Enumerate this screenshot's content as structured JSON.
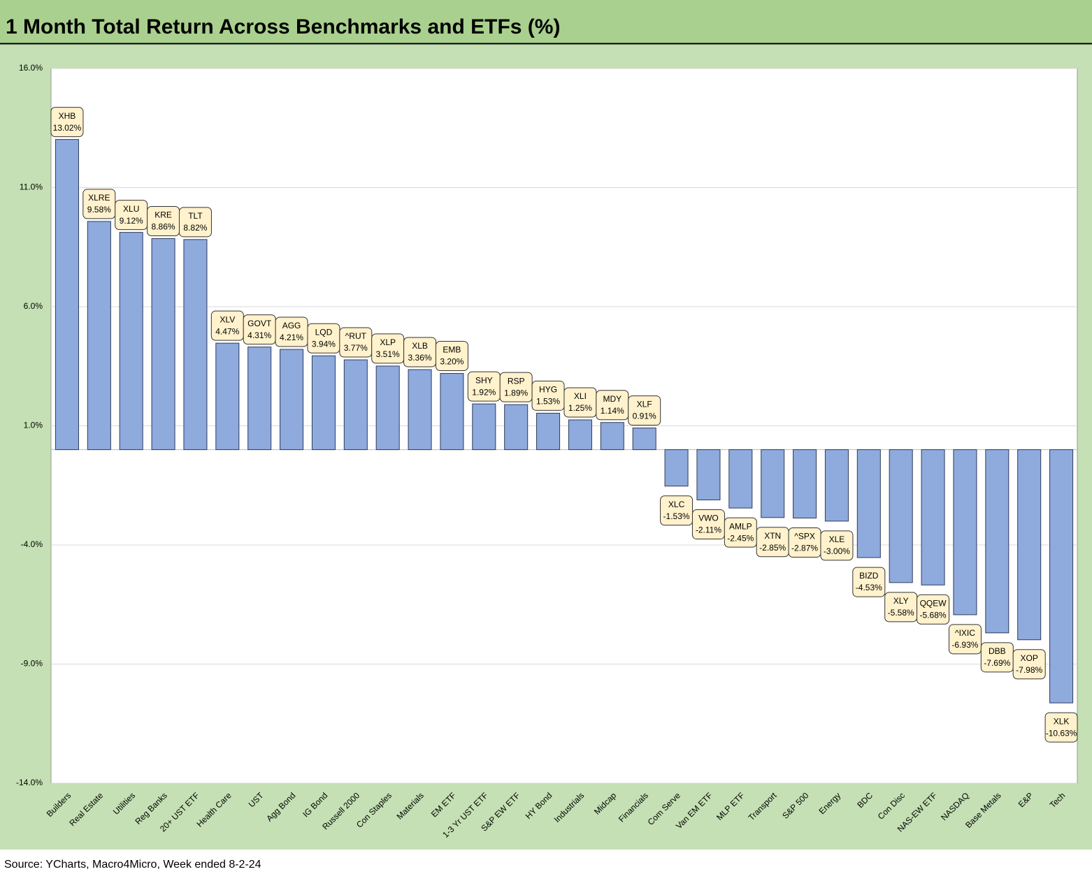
{
  "chart_data": {
    "type": "bar",
    "title": "1 Month Total Return Across Benchmarks and ETFs (%)",
    "source": "Source: YCharts, Macro4Micro, Week ended 8-2-24",
    "categories": [
      "Builders",
      "Real Estate",
      "Utilities",
      "Reg Banks",
      "20+ UST ETF",
      "Health Care",
      "UST",
      "Agg Bond",
      "IG Bond",
      "Russell 2000",
      "Con Staples",
      "Materials",
      "EM ETF",
      "1-3 Yr UST ETF",
      "S&P EW ETF",
      "HY Bond",
      "Industrials",
      "Midcap",
      "Financials",
      "Com Serve",
      "Van EM ETF",
      "MLP ETF",
      "Transport",
      "S&P 500",
      "Energy",
      "BDC",
      "Con Disc",
      "NAS-EW ETF",
      "NASDAQ",
      "Base Metals",
      "E&P",
      "Tech"
    ],
    "tickers": [
      "XHB",
      "XLRE",
      "XLU",
      "KRE",
      "TLT",
      "XLV",
      "GOVT",
      "AGG",
      "LQD",
      "^RUT",
      "XLP",
      "XLB",
      "EMB",
      "SHY",
      "RSP",
      "HYG",
      "XLI",
      "MDY",
      "XLF",
      "XLC",
      "VWO",
      "AMLP",
      "XTN",
      "^SPX",
      "XLE",
      "BIZD",
      "XLY",
      "QQEW",
      "^IXIC",
      "DBB",
      "XOP",
      "XLK"
    ],
    "values": [
      13.02,
      9.58,
      9.12,
      8.86,
      8.82,
      4.47,
      4.31,
      4.21,
      3.94,
      3.77,
      3.51,
      3.36,
      3.2,
      1.92,
      1.89,
      1.53,
      1.25,
      1.14,
      0.91,
      -1.53,
      -2.11,
      -2.45,
      -2.85,
      -2.87,
      -3.0,
      -4.53,
      -5.58,
      -5.68,
      -6.93,
      -7.69,
      -7.98,
      -10.63
    ],
    "value_labels": [
      "13.02%",
      "9.58%",
      "9.12%",
      "8.86%",
      "8.82%",
      "4.47%",
      "4.31%",
      "4.21%",
      "3.94%",
      "3.77%",
      "3.51%",
      "3.36%",
      "3.20%",
      "1.92%",
      "1.89%",
      "1.53%",
      "1.25%",
      "1.14%",
      "0.91%",
      "-1.53%",
      "-2.11%",
      "-2.45%",
      "-2.85%",
      "-2.87%",
      "-3.00%",
      "-4.53%",
      "-5.58%",
      "-5.68%",
      "-6.93%",
      "-7.69%",
      "-7.98%",
      "-10.63%"
    ],
    "color": "#8faadc",
    "ylim": [
      -14,
      16
    ],
    "yticks": [
      {
        "value": 16,
        "label": "16.0%"
      },
      {
        "value": 11,
        "label": "11.0%"
      },
      {
        "value": 6,
        "label": "6.0%"
      },
      {
        "value": 1,
        "label": "1.0%"
      },
      {
        "value": -4,
        "label": "-4.0%"
      },
      {
        "value": -9,
        "label": "-9.0%"
      },
      {
        "value": -14,
        "label": "-14.0%"
      }
    ],
    "grid": true
  }
}
